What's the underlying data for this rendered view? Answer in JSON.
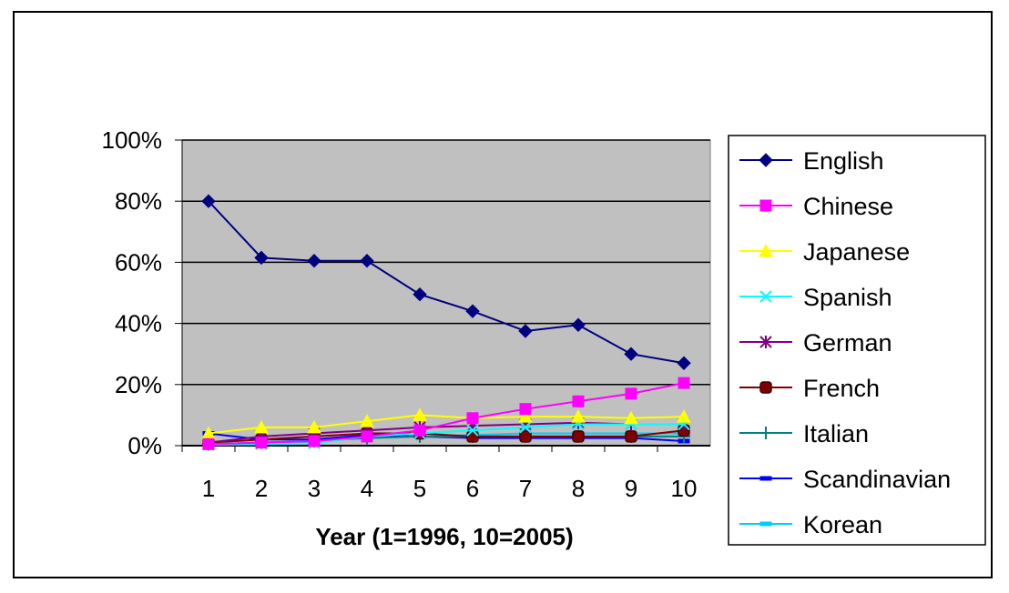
{
  "chart_data": {
    "type": "line",
    "xlabel": "Year (1=1996, 10=2005)",
    "ylabel": "",
    "x": [
      1,
      2,
      3,
      4,
      5,
      6,
      7,
      8,
      9,
      10
    ],
    "ylim": [
      0,
      100
    ],
    "yticks": [
      "0%",
      "20%",
      "40%",
      "60%",
      "80%",
      "100%"
    ],
    "grid": true,
    "legend_position": "right",
    "series": [
      {
        "name": "English",
        "color": "#000080",
        "marker": "diamond",
        "values": [
          80,
          61.5,
          60.5,
          60.5,
          49.5,
          44,
          37.5,
          39.5,
          30,
          27
        ]
      },
      {
        "name": "Chinese",
        "color": "#ff00ff",
        "marker": "square",
        "values": [
          0.5,
          1,
          1.5,
          3,
          5,
          9,
          12,
          14.5,
          17,
          20.5
        ]
      },
      {
        "name": "Japanese",
        "color": "#ffff00",
        "marker": "triangle",
        "values": [
          4,
          6,
          6,
          8,
          10,
          9,
          9.5,
          9.5,
          9,
          9.5
        ]
      },
      {
        "name": "Spanish",
        "color": "#00ffff",
        "marker": "x",
        "values": [
          0.3,
          0.5,
          0.8,
          3,
          4,
          5,
          6,
          7,
          7,
          7
        ]
      },
      {
        "name": "German",
        "color": "#800080",
        "marker": "star",
        "values": [
          1,
          3,
          4,
          5,
          6,
          6.5,
          7,
          7.5,
          7,
          7
        ]
      },
      {
        "name": "French",
        "color": "#800000",
        "marker": "circle-square",
        "values": [
          1,
          2,
          3,
          4,
          4,
          3,
          3,
          3,
          3,
          5
        ]
      },
      {
        "name": "Italian",
        "color": "#008080",
        "marker": "plus",
        "values": [
          0.5,
          1,
          1.5,
          2.5,
          3,
          3,
          3,
          3,
          3,
          3
        ]
      },
      {
        "name": "Scandinavian",
        "color": "#0000ff",
        "marker": "dash",
        "values": [
          4,
          2,
          2,
          3.5,
          3,
          2.5,
          2.5,
          2.5,
          2.5,
          1.5
        ]
      },
      {
        "name": "Korean",
        "color": "#00ccff",
        "marker": "dash",
        "values": [
          0.5,
          1,
          1.5,
          2.5,
          3,
          3.5,
          4,
          4,
          4,
          4
        ]
      }
    ]
  }
}
